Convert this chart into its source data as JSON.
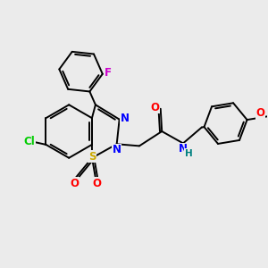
{
  "bg_color": "#ebebeb",
  "bond_color": "#000000",
  "atom_colors": {
    "Cl": "#00cc00",
    "F": "#cc00cc",
    "N": "#0000ff",
    "O": "#ff0000",
    "S": "#ccaa00",
    "C": "#000000",
    "H": "#008080"
  },
  "lw": 1.4,
  "fs": 8.5,
  "fig_w": 3.0,
  "fig_h": 3.0,
  "dpi": 100,
  "xlim": [
    0,
    10
  ],
  "ylim": [
    0,
    10
  ]
}
